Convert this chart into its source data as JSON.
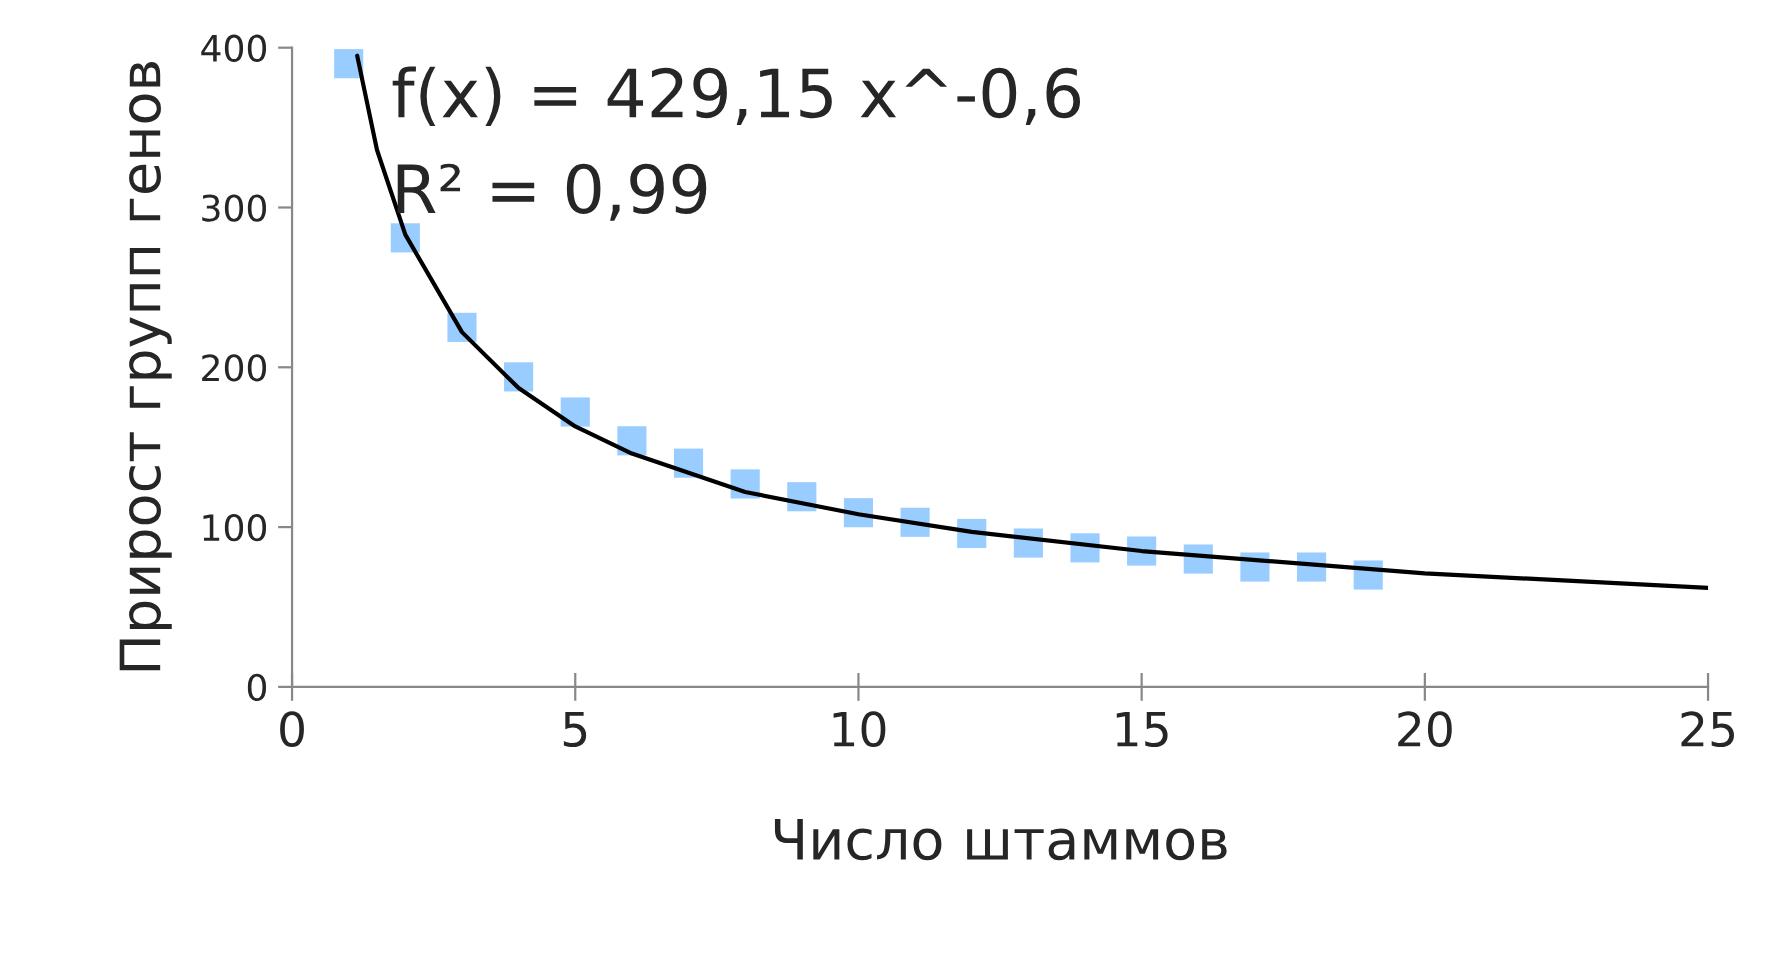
{
  "chart_data": {
    "type": "scatter",
    "xlabel": "Число штаммов",
    "ylabel": "Прирост групп генов",
    "annotations": [
      "f(x) = 429,15 x^-0,6",
      "R² = 0,99"
    ],
    "series": [
      {
        "color": "#99ccff",
        "marker": "square",
        "x": [
          1,
          2,
          3,
          4,
          5,
          6,
          7,
          8,
          9,
          10,
          11,
          12,
          13,
          14,
          15,
          16,
          17,
          18,
          19
        ],
        "values": [
          390,
          281,
          225,
          194,
          172,
          154,
          140,
          127,
          119,
          109,
          103,
          96,
          90,
          87,
          85,
          80,
          75,
          75,
          70
        ]
      },
      {
        "type": "line",
        "color": "#000000",
        "line_style": "solid",
        "x": [
          1.15,
          1.5,
          2,
          3,
          4,
          5,
          6,
          8,
          10,
          12,
          15,
          20,
          25
        ],
        "values": [
          395,
          336,
          283,
          222,
          187,
          163,
          146,
          122,
          108,
          97,
          85,
          71,
          62
        ]
      }
    ],
    "xlim": [
      0,
      25
    ],
    "xticks": [
      0,
      5,
      10,
      15,
      20,
      25
    ],
    "ylim": [
      0,
      400
    ],
    "yticks": [
      0,
      100,
      200,
      300,
      400
    ],
    "grid": false,
    "legend": false
  }
}
